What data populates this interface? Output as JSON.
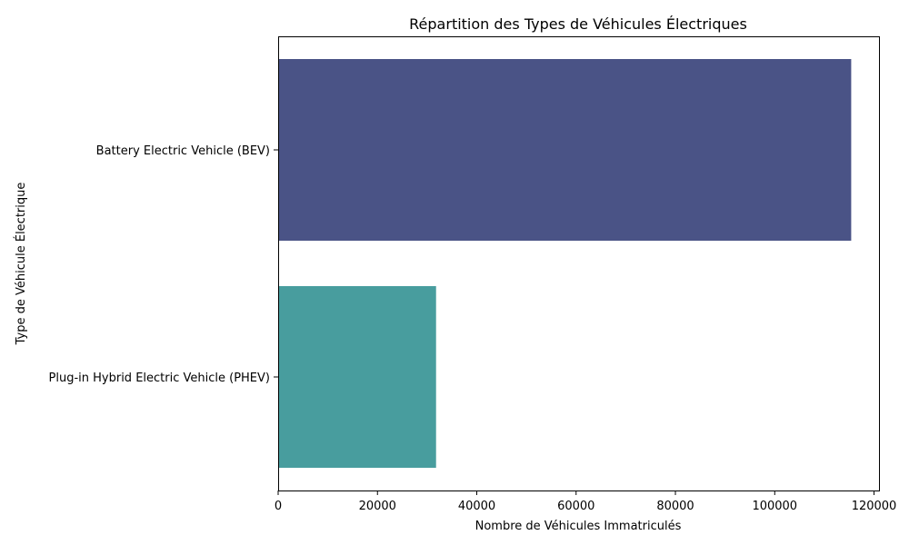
{
  "chart_data": {
    "type": "bar",
    "orientation": "horizontal",
    "title": "Répartition des Types de Véhicules Électriques",
    "xlabel": "Nombre de Véhicules Immatriculés",
    "ylabel": "Type de Véhicule Électrique",
    "categories": [
      "Battery Electric Vehicle (BEV)",
      "Plug-in Hybrid Electric Vehicle (PHEV)"
    ],
    "values": [
      115400,
      31800
    ],
    "colors": [
      "#4a5386",
      "#489d9e"
    ],
    "xlim": [
      0,
      121000
    ],
    "xticks": [
      0,
      20000,
      40000,
      60000,
      80000,
      100000,
      120000
    ],
    "xtick_labels": [
      "0",
      "20000",
      "40000",
      "60000",
      "80000",
      "100000",
      "120000"
    ],
    "grid": false,
    "legend": "none"
  }
}
